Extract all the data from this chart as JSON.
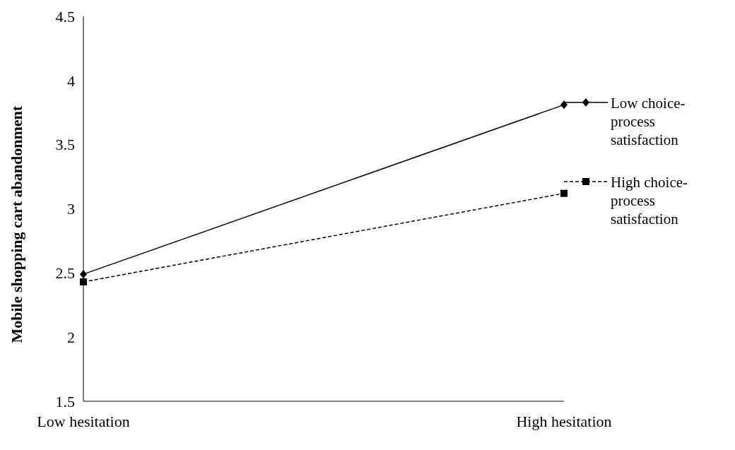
{
  "chart_data": {
    "type": "line",
    "ylabel": "Mobile shopping cart abandonment",
    "categories": [
      "Low hesitation",
      "High hesitation"
    ],
    "series": [
      {
        "name": "Low choice-process satisfaction",
        "color": "#000000",
        "values": [
          2.49,
          3.81
        ],
        "marker": "diamond",
        "line_style": "solid"
      },
      {
        "name": "High choice-process satisfaction",
        "color": "#000000",
        "values": [
          2.43,
          3.12
        ],
        "marker": "square",
        "line_style": "dashed"
      }
    ],
    "ylim": [
      1.5,
      4.5
    ],
    "yticks": [
      1.5,
      2,
      2.5,
      3,
      3.5,
      4,
      4.5
    ],
    "grid": false,
    "legend": "right"
  }
}
